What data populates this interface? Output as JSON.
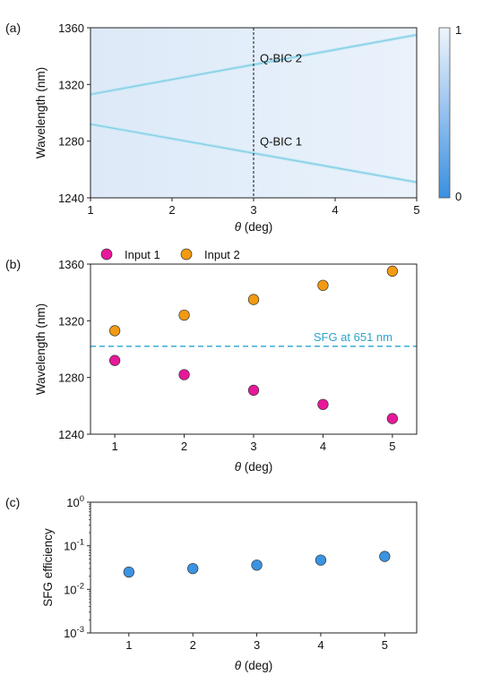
{
  "chart_data": [
    {
      "panel_label": "(a)",
      "type": "heatmap",
      "xlabel_symbol": "θ",
      "xlabel_unit": " (deg)",
      "ylabel": "Wavelength (nm)",
      "xlim": [
        1,
        5
      ],
      "ylim": [
        1240,
        1360
      ],
      "xticks": [
        "1",
        "2",
        "3",
        "4",
        "5"
      ],
      "yticks": [
        "1240",
        "1280",
        "1320",
        "1360"
      ],
      "bands": [
        {
          "label": "Q-BIC 2",
          "x": [
            1,
            5
          ],
          "y": [
            1313,
            1355
          ]
        },
        {
          "label": "Q-BIC 1",
          "x": [
            1,
            5
          ],
          "y": [
            1292,
            1251
          ]
        }
      ],
      "marker_line_x": 3,
      "colorbar": {
        "min_label": "0",
        "max_label": "1",
        "low_color": "#3a8fe0",
        "high_color": "#eef4fc"
      }
    },
    {
      "panel_label": "(b)",
      "type": "scatter",
      "xlabel_symbol": "θ",
      "xlabel_unit": " (deg)",
      "ylabel": "Wavelength (nm)",
      "xlim": [
        0.65,
        5.35
      ],
      "ylim": [
        1240,
        1360
      ],
      "xticks": [
        "1",
        "2",
        "3",
        "4",
        "5"
      ],
      "yticks": [
        "1240",
        "1280",
        "1320",
        "1360"
      ],
      "series": [
        {
          "name": "Input 1",
          "color": "#e8189a",
          "x": [
            1,
            2,
            3,
            4,
            5
          ],
          "y": [
            1292,
            1282,
            1271,
            1261,
            1251
          ]
        },
        {
          "name": "Input 2",
          "color": "#f29a12",
          "x": [
            1,
            2,
            3,
            4,
            5
          ],
          "y": [
            1313,
            1324,
            1335,
            1345,
            1355
          ]
        }
      ],
      "hline": {
        "y": 1302,
        "label": "SFG at 651 nm",
        "color": "#2aa4cf"
      },
      "legend_placement": "top-left"
    },
    {
      "panel_label": "(c)",
      "type": "scatter",
      "xlabel_symbol": "θ",
      "xlabel_unit": " (deg)",
      "ylabel": "SFG efficiency",
      "yscale": "log",
      "xlim": [
        0.4,
        5.5
      ],
      "ylim": [
        0.001,
        1
      ],
      "xticks": [
        "1",
        "2",
        "3",
        "4",
        "5"
      ],
      "yticks": [
        {
          "base": "10",
          "exp": "-3",
          "value": 0.001
        },
        {
          "base": "10",
          "exp": "-2",
          "value": 0.01
        },
        {
          "base": "10",
          "exp": "-1",
          "value": 0.1
        },
        {
          "base": "10",
          "exp": "0",
          "value": 1
        }
      ],
      "series": [
        {
          "color": "#3a94e2",
          "x": [
            1,
            2,
            3,
            4,
            5
          ],
          "y": [
            0.025,
            0.03,
            0.036,
            0.047,
            0.057
          ]
        }
      ]
    }
  ]
}
